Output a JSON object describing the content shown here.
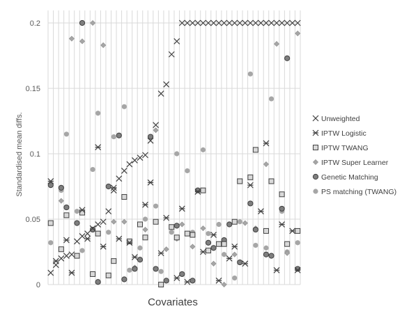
{
  "chart_data": {
    "type": "scatter",
    "title": "",
    "xlabel": "Covariates",
    "ylabel": "Standardised mean diffs.",
    "ylim": [
      0,
      0.2
    ],
    "yticks": [
      0,
      0.05,
      0.1,
      0.15,
      0.2
    ],
    "ytick_labels": [
      "0",
      "0.05",
      "0.1",
      "0.15",
      "0.2"
    ],
    "n_covariates": 48,
    "grid": "vertical and horizontal",
    "legend_position": "right",
    "series": [
      {
        "name": "Unweighted",
        "marker": "x",
        "color": "#404040",
        "values": [
          0.009,
          0.015,
          0.02,
          0.022,
          0.023,
          0.033,
          0.037,
          0.039,
          0.043,
          0.046,
          0.048,
          0.056,
          0.072,
          0.081,
          0.087,
          0.092,
          0.095,
          0.097,
          0.099,
          0.11,
          0.122,
          0.146,
          0.153,
          0.176,
          0.186,
          0.2,
          0.2,
          0.2,
          0.2,
          0.2,
          0.2,
          0.2,
          0.2,
          0.2,
          0.2,
          0.2,
          0.2,
          0.2,
          0.2,
          0.2,
          0.2,
          0.2,
          0.2,
          0.2,
          0.2,
          0.2,
          0.2,
          0.2
        ]
      },
      {
        "name": "IPTW Logistic",
        "marker": "asterisk",
        "color": "#404040",
        "values": [
          0.079,
          0.018,
          0.034,
          0.009,
          0.057,
          0.035,
          0.105,
          0.029,
          0.074,
          0.035,
          0.032,
          0.021,
          0.061,
          0.078,
          0.024,
          0.051,
          0.005,
          0.058,
          0.002,
          0.071,
          0.025,
          0.038,
          0.003,
          0.02,
          0.029,
          0.016,
          0.076,
          0.056,
          0.108,
          0.011,
          0.046,
          0.041,
          0.011
        ]
      },
      {
        "name": "IPTW TWANG",
        "marker": "square",
        "color": "#404040",
        "fill": "#d9d9d9",
        "values": [
          0.047,
          0.027,
          0.053,
          0.022,
          0.055,
          0.008,
          0.039,
          0.007,
          0.018,
          0.067,
          0.033,
          0.046,
          0.036,
          0.048,
          0.0,
          0.044,
          0.036,
          0.039,
          0.038,
          0.072,
          0.026,
          0.031,
          0.031,
          0.048,
          0.079,
          0.082,
          0.103,
          0.041,
          0.079,
          0.069,
          0.031,
          0.041
        ]
      },
      {
        "name": "IPTW Super Learner",
        "marker": "diamond",
        "color": "#a6a6a6",
        "values": [
          0.077,
          0.064,
          0.188,
          0.186,
          0.2,
          0.183,
          0.048,
          0.048,
          0.013,
          0.042,
          0.118,
          0.027,
          0.035,
          0.046,
          0.029,
          0.043,
          0.016,
          0.0,
          0.023,
          0.047,
          0.043,
          0.092,
          0.184,
          0.024,
          0.192
        ]
      },
      {
        "name": "Genetic Matching",
        "marker": "circle",
        "color": "#404040",
        "fill": "#7f7f7f",
        "values": [
          0.076,
          0.074,
          0.059,
          0.047,
          0.2,
          0.042,
          0.002,
          0.075,
          0.114,
          0.004,
          0.012,
          0.019,
          0.113,
          0.012,
          0.003,
          0.045,
          0.008,
          0.003,
          0.072,
          0.032,
          0.028,
          0.034,
          0.046,
          0.017,
          0.062,
          0.042,
          0.023,
          0.022,
          0.058,
          0.173,
          0.012
        ]
      },
      {
        "name": "PS matching (TWANG)",
        "marker": "dot",
        "color": "#a6a6a6",
        "values": [
          0.032,
          0.072,
          0.115,
          0.056,
          0.026,
          0.088,
          0.131,
          0.04,
          0.113,
          0.136,
          0.011,
          0.028,
          0.05,
          0.06,
          0.01,
          0.04,
          0.1,
          0.087,
          0.04,
          0.103,
          0.039,
          0.046,
          0.023,
          0.005,
          0.048,
          0.161,
          0.03,
          0.028,
          0.142,
          0.056,
          0.025,
          0.032
        ]
      }
    ]
  }
}
